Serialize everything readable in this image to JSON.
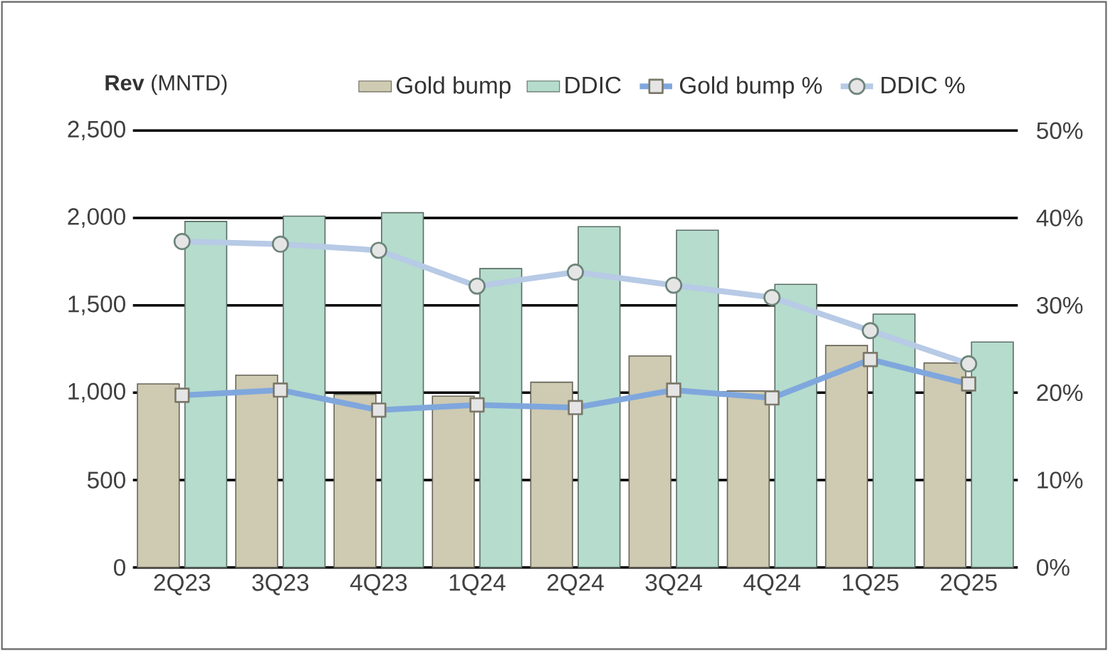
{
  "chart_data": {
    "type": "bar",
    "ylabel": "**Rev** (MNTD)",
    "categories": [
      "2Q23",
      "3Q23",
      "4Q23",
      "1Q24",
      "2Q24",
      "3Q24",
      "4Q24",
      "1Q25",
      "2Q25"
    ],
    "series": [
      {
        "name": "Gold bump",
        "color": "#cfcab2",
        "values": [
          1050,
          1100,
          990,
          980,
          1060,
          1210,
          1010,
          1270,
          1170
        ]
      },
      {
        "name": "DDIC",
        "color": "#b5dccd",
        "values": [
          1980,
          2010,
          2030,
          1710,
          1950,
          1930,
          1620,
          1450,
          1290
        ]
      },
      {
        "name": "Gold bump %",
        "type": "line",
        "axis": "y2",
        "marker": "square",
        "color": "#7fa7dd",
        "values": [
          19.7,
          20.3,
          18.0,
          18.6,
          18.3,
          20.3,
          19.4,
          23.8,
          21.0
        ]
      },
      {
        "name": "DDIC %",
        "type": "line",
        "axis": "y2",
        "marker": "circle",
        "color": "#b7cae6",
        "values": [
          37.3,
          37.0,
          36.3,
          32.2,
          33.8,
          32.3,
          30.9,
          27.1,
          23.3
        ]
      }
    ],
    "ylim": [
      0,
      2500
    ],
    "yticks": [
      {
        "value": 0,
        "label": "0"
      },
      {
        "value": 500,
        "label": "500"
      },
      {
        "value": 1000,
        "label": "1,000"
      },
      {
        "value": 1500,
        "label": "1,500"
      },
      {
        "value": 2000,
        "label": "2,000"
      },
      {
        "value": 2500,
        "label": "2,500"
      }
    ],
    "y2lim": [
      0,
      50
    ],
    "y2ticks": [
      {
        "value": 0,
        "label": "0%"
      },
      {
        "value": 10,
        "label": "10%"
      },
      {
        "value": 20,
        "label": "20%"
      },
      {
        "value": 30,
        "label": "30%"
      },
      {
        "value": 40,
        "label": "40%"
      },
      {
        "value": 50,
        "label": "50%"
      }
    ],
    "grid": "y",
    "legend": "top"
  }
}
